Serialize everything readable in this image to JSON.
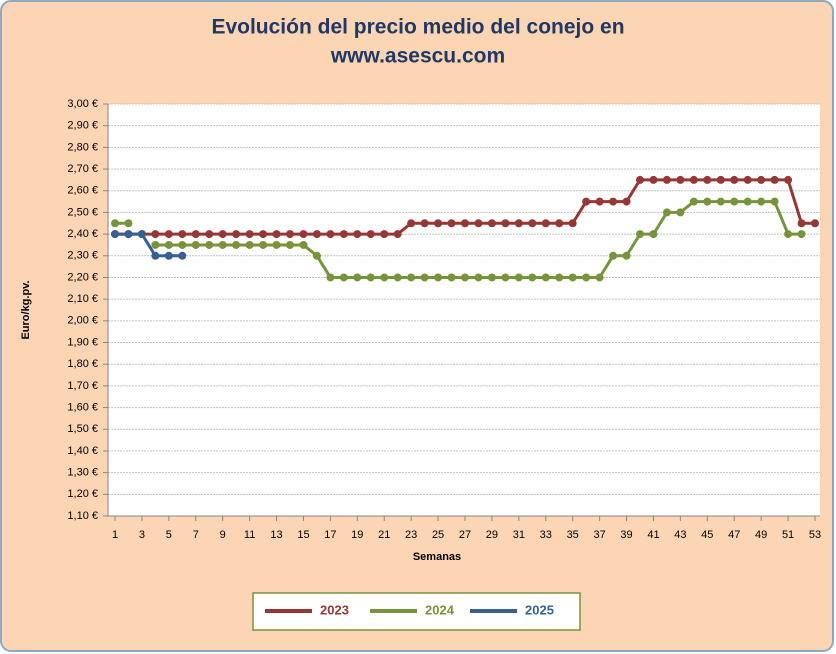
{
  "chart_data": {
    "type": "line",
    "title": "Evolución del precio medio del conejo en",
    "subtitle": "www.asescu.com",
    "x_label": "Semanas",
    "y_label": "Euro/kg.pv.",
    "x": [
      1,
      2,
      3,
      4,
      5,
      6,
      7,
      8,
      9,
      10,
      11,
      12,
      13,
      14,
      15,
      16,
      17,
      18,
      19,
      20,
      21,
      22,
      23,
      24,
      25,
      26,
      27,
      28,
      29,
      30,
      31,
      32,
      33,
      34,
      35,
      36,
      37,
      38,
      39,
      40,
      41,
      42,
      43,
      44,
      45,
      46,
      47,
      48,
      49,
      50,
      51,
      52,
      53
    ],
    "xlim": [
      1,
      53
    ],
    "xticks": [
      1,
      3,
      5,
      7,
      9,
      11,
      13,
      15,
      17,
      19,
      21,
      23,
      25,
      27,
      29,
      31,
      33,
      35,
      37,
      39,
      41,
      43,
      45,
      47,
      49,
      51,
      53
    ],
    "ylim": [
      1.1,
      3.0
    ],
    "yticks": [
      {
        "value": 1.1,
        "label": "1,10 €"
      },
      {
        "value": 1.2,
        "label": "1,20 €"
      },
      {
        "value": 1.3,
        "label": "1,30 €"
      },
      {
        "value": 1.4,
        "label": "1,40 €"
      },
      {
        "value": 1.5,
        "label": "1,50 €"
      },
      {
        "value": 1.6,
        "label": "1,60 €"
      },
      {
        "value": 1.7,
        "label": "1,70 €"
      },
      {
        "value": 1.8,
        "label": "1,80 €"
      },
      {
        "value": 1.9,
        "label": "1,90 €"
      },
      {
        "value": 2.0,
        "label": "2,00 €"
      },
      {
        "value": 2.1,
        "label": "2,10 €"
      },
      {
        "value": 2.2,
        "label": "2,20 €"
      },
      {
        "value": 2.3,
        "label": "2,30 €"
      },
      {
        "value": 2.4,
        "label": "2,40 €"
      },
      {
        "value": 2.5,
        "label": "2,50 €"
      },
      {
        "value": 2.6,
        "label": "2,60 €"
      },
      {
        "value": 2.7,
        "label": "2,70 €"
      },
      {
        "value": 2.8,
        "label": "2,80 €"
      },
      {
        "value": 2.9,
        "label": "2,90 €"
      },
      {
        "value": 3.0,
        "label": "3,00 €"
      }
    ],
    "grid": true,
    "legend": "bottom",
    "series": [
      {
        "name": "2023",
        "color": "#953735",
        "values": [
          2.4,
          2.4,
          2.4,
          2.4,
          2.4,
          2.4,
          2.4,
          2.4,
          2.4,
          2.4,
          2.4,
          2.4,
          2.4,
          2.4,
          2.4,
          2.4,
          2.4,
          2.4,
          2.4,
          2.4,
          2.4,
          2.4,
          2.45,
          2.45,
          2.45,
          2.45,
          2.45,
          2.45,
          2.45,
          2.45,
          2.45,
          2.45,
          2.45,
          2.45,
          2.45,
          2.55,
          2.55,
          2.55,
          2.55,
          2.65,
          2.65,
          2.65,
          2.65,
          2.65,
          2.65,
          2.65,
          2.65,
          2.65,
          2.65,
          2.65,
          2.65,
          2.45,
          2.45
        ]
      },
      {
        "name": "2024",
        "color": "#77933c",
        "values": [
          2.45,
          2.45,
          null,
          2.35,
          2.35,
          2.35,
          2.35,
          2.35,
          2.35,
          2.35,
          2.35,
          2.35,
          2.35,
          2.35,
          2.35,
          2.3,
          2.2,
          2.2,
          2.2,
          2.2,
          2.2,
          2.2,
          2.2,
          2.2,
          2.2,
          2.2,
          2.2,
          2.2,
          2.2,
          2.2,
          2.2,
          2.2,
          2.2,
          2.2,
          2.2,
          2.2,
          2.2,
          2.3,
          2.3,
          2.4,
          2.4,
          2.5,
          2.5,
          2.55,
          2.55,
          2.55,
          2.55,
          2.55,
          2.55,
          2.55,
          2.4,
          2.4,
          null
        ]
      },
      {
        "name": "2025",
        "color": "#376092",
        "values": [
          2.4,
          2.4,
          2.4,
          2.3,
          2.3,
          2.3,
          null,
          null,
          null,
          null,
          null,
          null,
          null,
          null,
          null,
          null,
          null,
          null,
          null,
          null,
          null,
          null,
          null,
          null,
          null,
          null,
          null,
          null,
          null,
          null,
          null,
          null,
          null,
          null,
          null,
          null,
          null,
          null,
          null,
          null,
          null,
          null,
          null,
          null,
          null,
          null,
          null,
          null,
          null,
          null,
          null,
          null,
          null
        ]
      }
    ]
  }
}
